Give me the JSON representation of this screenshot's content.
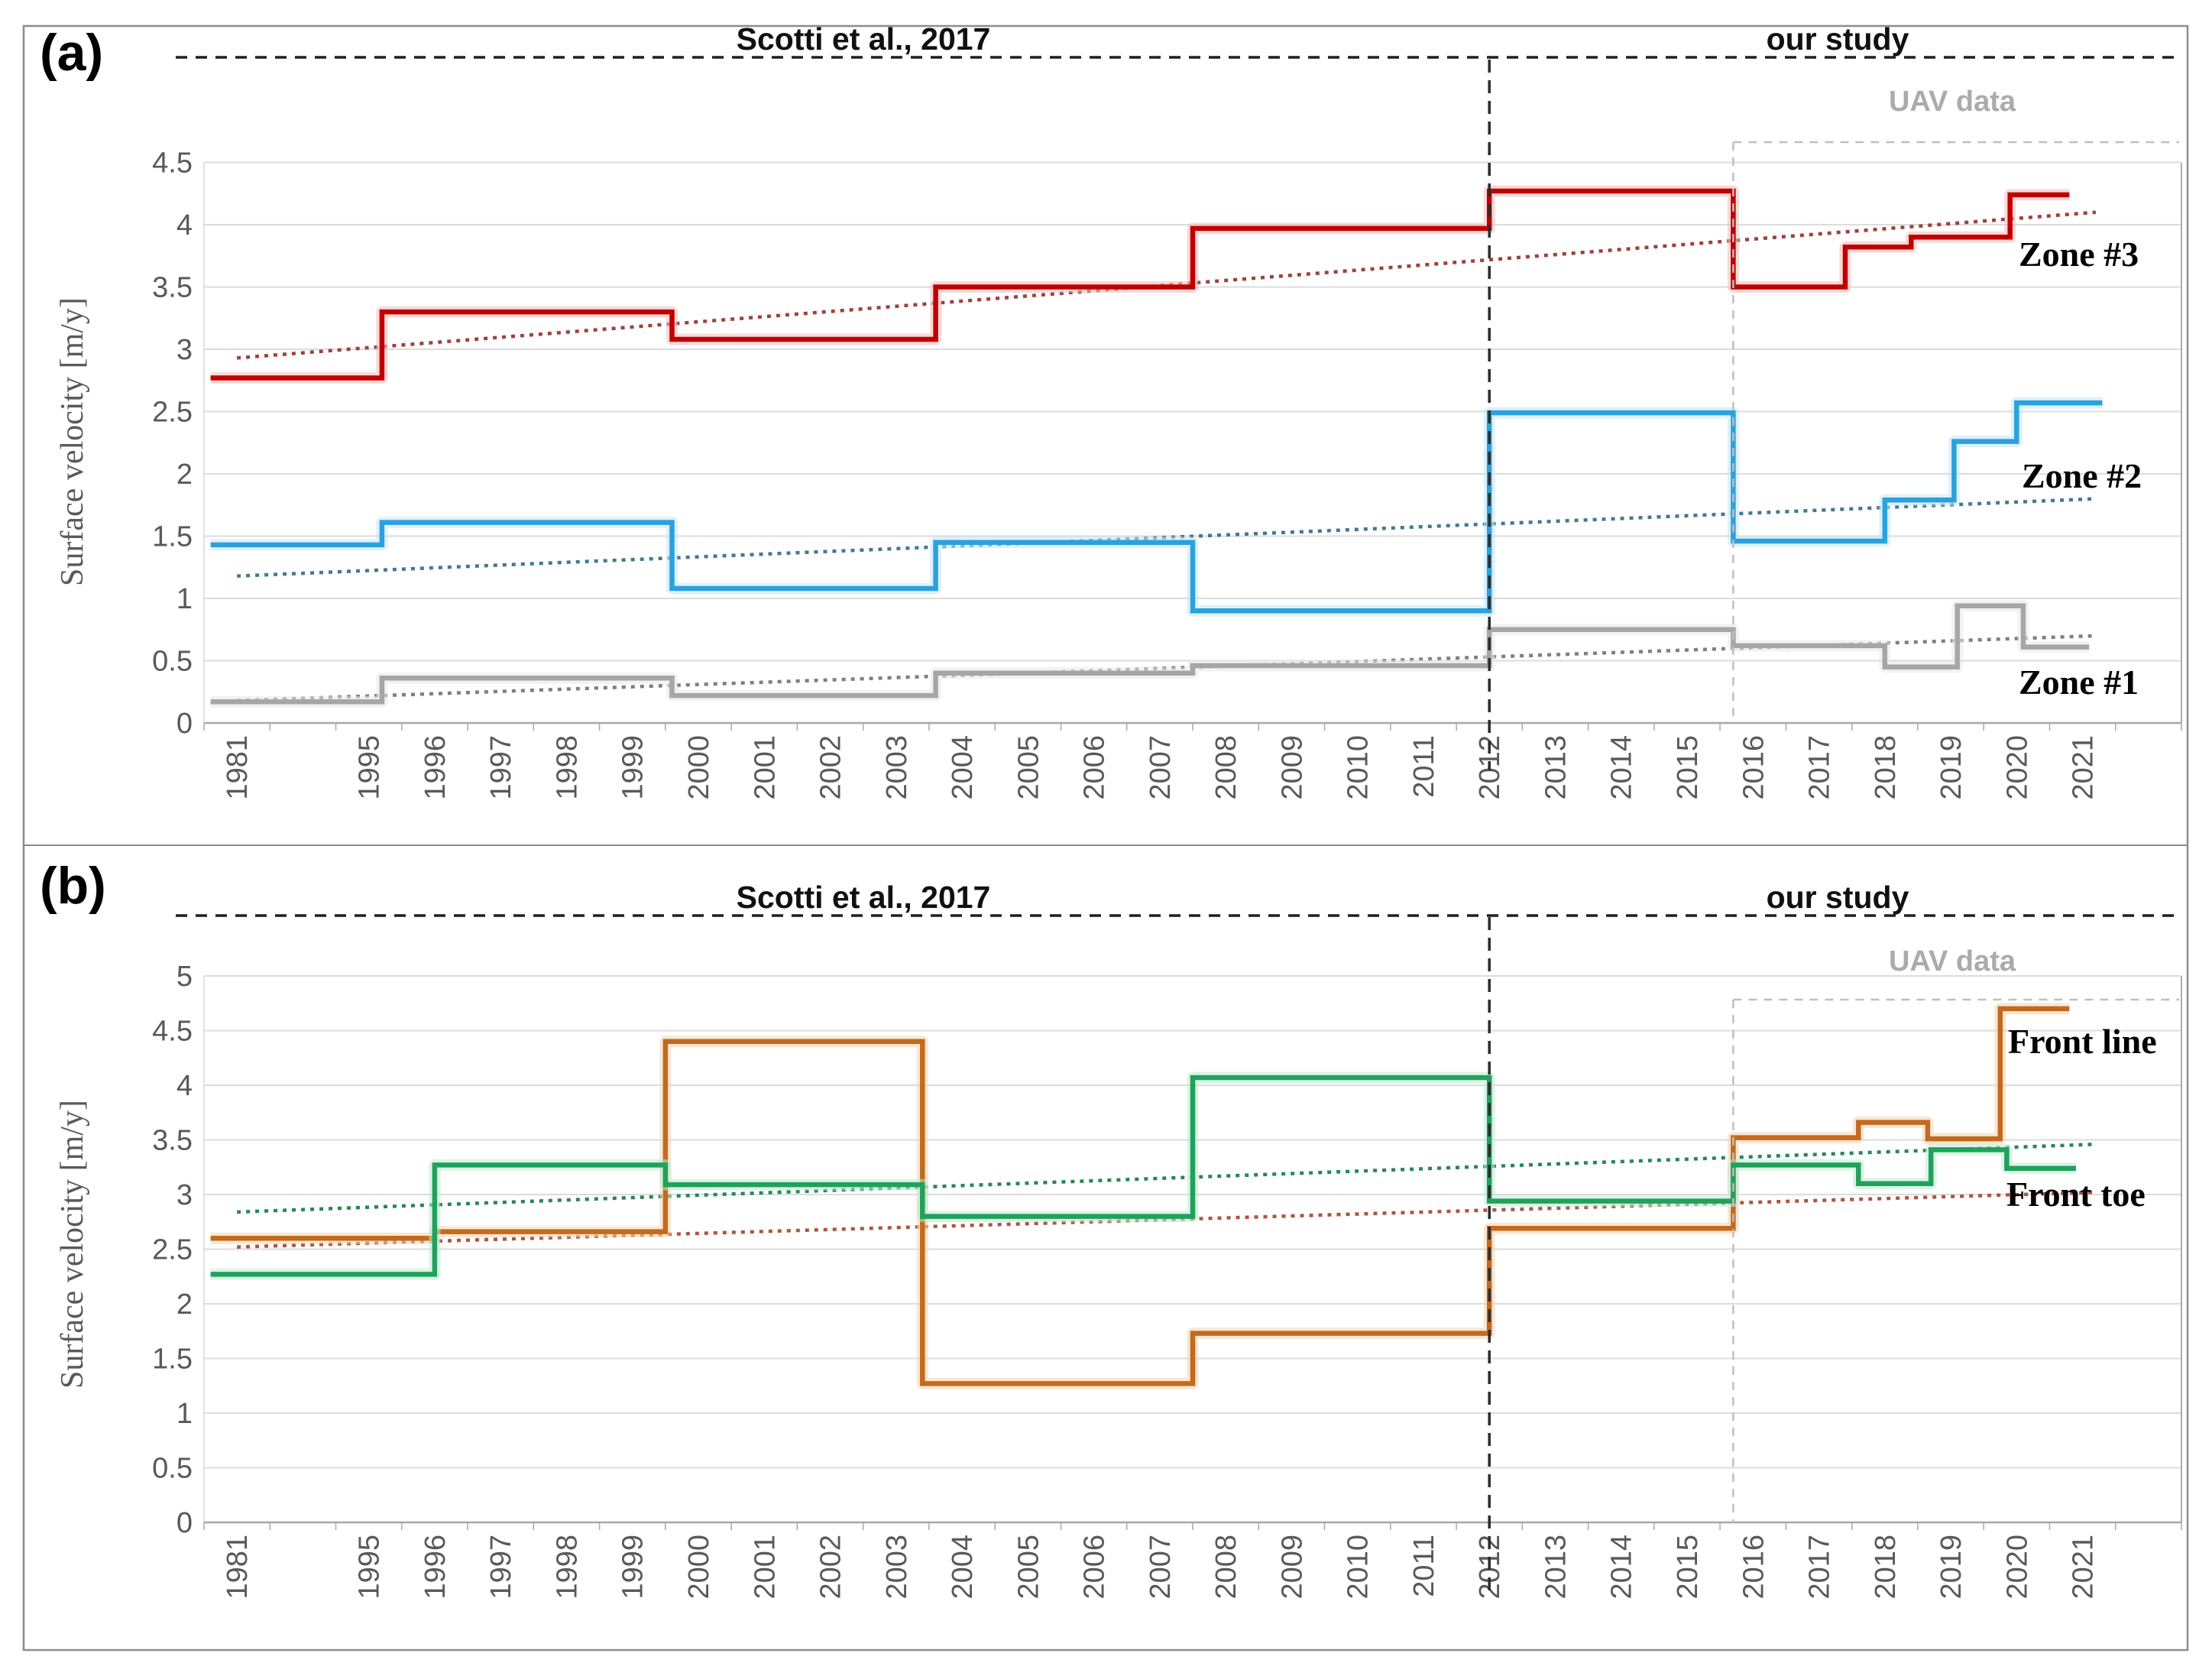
{
  "figure": {
    "type": "two-panel step-line time series of rock glacier surface velocity",
    "x_categories": [
      "1981",
      "1995",
      "1996",
      "1997",
      "1998",
      "1999",
      "2000",
      "2001",
      "2002",
      "2003",
      "2004",
      "2005",
      "2006",
      "2007",
      "2008",
      "2009",
      "2010",
      "2011",
      "2012",
      "2013",
      "2014",
      "2015",
      "2016",
      "2017",
      "2018",
      "2019",
      "2020",
      "2021"
    ],
    "colors": {
      "gridline": "#DCDCDC",
      "axis": "#A8A8A8",
      "tick_text": "#595959",
      "black_dash": "#1F1F1F",
      "gray_dash": "#BFBFBF",
      "border": "#8C8C8C"
    }
  },
  "chart_data": [
    {
      "type": "step-line",
      "panel": "a",
      "panel_letter": "(a)",
      "title_left": "Scotti et al., 2017",
      "title_right": "our study",
      "uav_label": "UAV data",
      "ylabel": "Surface velocity [m/y]",
      "ylim": [
        0,
        4.75
      ],
      "yticks": [
        0,
        0.5,
        1,
        1.5,
        2,
        2.5,
        3,
        3.5,
        4,
        4.5
      ],
      "x_categories": [
        "1981",
        "1995",
        "1996",
        "1997",
        "1998",
        "1999",
        "2000",
        "2001",
        "2002",
        "2003",
        "2004",
        "2005",
        "2006",
        "2007",
        "2008",
        "2009",
        "2010",
        "2011",
        "2012",
        "2013",
        "2014",
        "2015",
        "2016",
        "2017",
        "2018",
        "2019",
        "2020",
        "2021"
      ],
      "study_split_year": 2012,
      "uav_start_year": 2015.7,
      "legend_position": "right-inline",
      "grid": true,
      "series": [
        {
          "name": "Zone #3",
          "color": "#C00000",
          "halo": "#F5B9B9",
          "trend_color": "#9C413E",
          "segments": [
            [
              1980.6,
              1995.2,
              2.77
            ],
            [
              1995.2,
              1999.6,
              3.3
            ],
            [
              1999.6,
              2003.6,
              3.08
            ],
            [
              2003.6,
              2007.5,
              3.5
            ],
            [
              2007.5,
              2012.0,
              3.97
            ],
            [
              2012.0,
              2015.7,
              4.27
            ],
            [
              2015.7,
              2017.4,
              3.5
            ],
            [
              2017.4,
              2018.4,
              3.82
            ],
            [
              2018.4,
              2019.9,
              3.9
            ],
            [
              2019.9,
              2020.8,
              4.24
            ]
          ],
          "trend": {
            "start_year": 1981,
            "start_value": 2.93,
            "end_year": 2021.2,
            "end_value": 4.1
          }
        },
        {
          "name": "Zone #2",
          "color": "#2CA1DB",
          "halo": "#C2E6F7",
          "trend_color": "#44788F",
          "segments": [
            [
              1980.6,
              1995.2,
              1.43
            ],
            [
              1995.2,
              1999.6,
              1.61
            ],
            [
              1999.6,
              2003.6,
              1.08
            ],
            [
              2003.6,
              2007.5,
              1.45
            ],
            [
              2007.5,
              2012.0,
              0.9
            ],
            [
              2012.0,
              2015.7,
              2.49
            ],
            [
              2015.7,
              2018.0,
              1.46
            ],
            [
              2018.0,
              2019.05,
              1.79
            ],
            [
              2019.05,
              2020.0,
              2.26
            ],
            [
              2020.0,
              2021.3,
              2.57
            ]
          ],
          "trend": {
            "start_year": 1981,
            "start_value": 1.18,
            "end_year": 2021.2,
            "end_value": 1.8
          }
        },
        {
          "name": "Zone #1",
          "color": "#A6A6A6",
          "halo": "#E8E8E8",
          "trend_color": "#7F7F7F",
          "segments": [
            [
              1980.6,
              1995.2,
              0.17
            ],
            [
              1995.2,
              1999.6,
              0.36
            ],
            [
              1999.6,
              2003.6,
              0.22
            ],
            [
              2003.6,
              2007.5,
              0.4
            ],
            [
              2007.5,
              2012.0,
              0.46
            ],
            [
              2012.0,
              2015.7,
              0.75
            ],
            [
              2015.7,
              2018.0,
              0.62
            ],
            [
              2018.0,
              2019.1,
              0.45
            ],
            [
              2019.1,
              2020.1,
              0.94
            ],
            [
              2020.1,
              2021.1,
              0.61
            ]
          ],
          "trend": {
            "start_year": 1981,
            "start_value": 0.18,
            "end_year": 2021.2,
            "end_value": 0.7
          }
        }
      ]
    },
    {
      "type": "step-line",
      "panel": "b",
      "panel_letter": "(b)",
      "title_left": "Scotti et al., 2017",
      "title_right": "our study",
      "uav_label": "UAV data",
      "ylabel": "Surface velocity [m/y]",
      "ylim": [
        0,
        5.25
      ],
      "yticks": [
        0,
        0.5,
        1,
        1.5,
        2,
        2.5,
        3,
        3.5,
        4,
        4.5,
        5
      ],
      "x_categories": [
        "1981",
        "1995",
        "1996",
        "1997",
        "1998",
        "1999",
        "2000",
        "2001",
        "2002",
        "2003",
        "2004",
        "2005",
        "2006",
        "2007",
        "2008",
        "2009",
        "2010",
        "2011",
        "2012",
        "2013",
        "2014",
        "2015",
        "2016",
        "2017",
        "2018",
        "2019",
        "2020",
        "2021"
      ],
      "study_split_year": 2012,
      "uav_start_year": 2015.7,
      "legend_position": "right-inline",
      "grid": true,
      "series": [
        {
          "name": "Front line",
          "color": "#C26A1E",
          "halo": "#F2D3AE",
          "trend_color": "#AE5440",
          "segments": [
            [
              1980.6,
              1996.0,
              2.6
            ],
            [
              1996.0,
              1999.5,
              2.66
            ],
            [
              1999.5,
              2003.4,
              4.4
            ],
            [
              2003.4,
              2007.5,
              1.27
            ],
            [
              2007.5,
              2012.0,
              1.73
            ],
            [
              2012.0,
              2015.7,
              2.69
            ],
            [
              2015.7,
              2017.6,
              3.52
            ],
            [
              2017.6,
              2018.65,
              3.66
            ],
            [
              2018.65,
              2019.75,
              3.51
            ],
            [
              2019.75,
              2020.8,
              4.7
            ]
          ],
          "trend": {
            "start_year": 1981,
            "start_value": 2.52,
            "end_year": 2021.2,
            "end_value": 3.02
          }
        },
        {
          "name": "Front toe",
          "color": "#21A15B",
          "halo": "#BDEBD2",
          "trend_color": "#27865A",
          "segments": [
            [
              1980.6,
              1996.0,
              2.27
            ],
            [
              1996.0,
              1999.5,
              3.27
            ],
            [
              1999.5,
              2003.4,
              3.09
            ],
            [
              2003.4,
              2007.5,
              2.8
            ],
            [
              2007.5,
              2012.0,
              4.07
            ],
            [
              2012.0,
              2015.7,
              2.94
            ],
            [
              2015.7,
              2017.6,
              3.27
            ],
            [
              2017.6,
              2018.7,
              3.1
            ],
            [
              2018.7,
              2019.85,
              3.41
            ],
            [
              2019.85,
              2020.9,
              3.24
            ]
          ],
          "trend": {
            "start_year": 1981,
            "start_value": 2.84,
            "end_year": 2021.2,
            "end_value": 3.46
          }
        }
      ]
    }
  ]
}
